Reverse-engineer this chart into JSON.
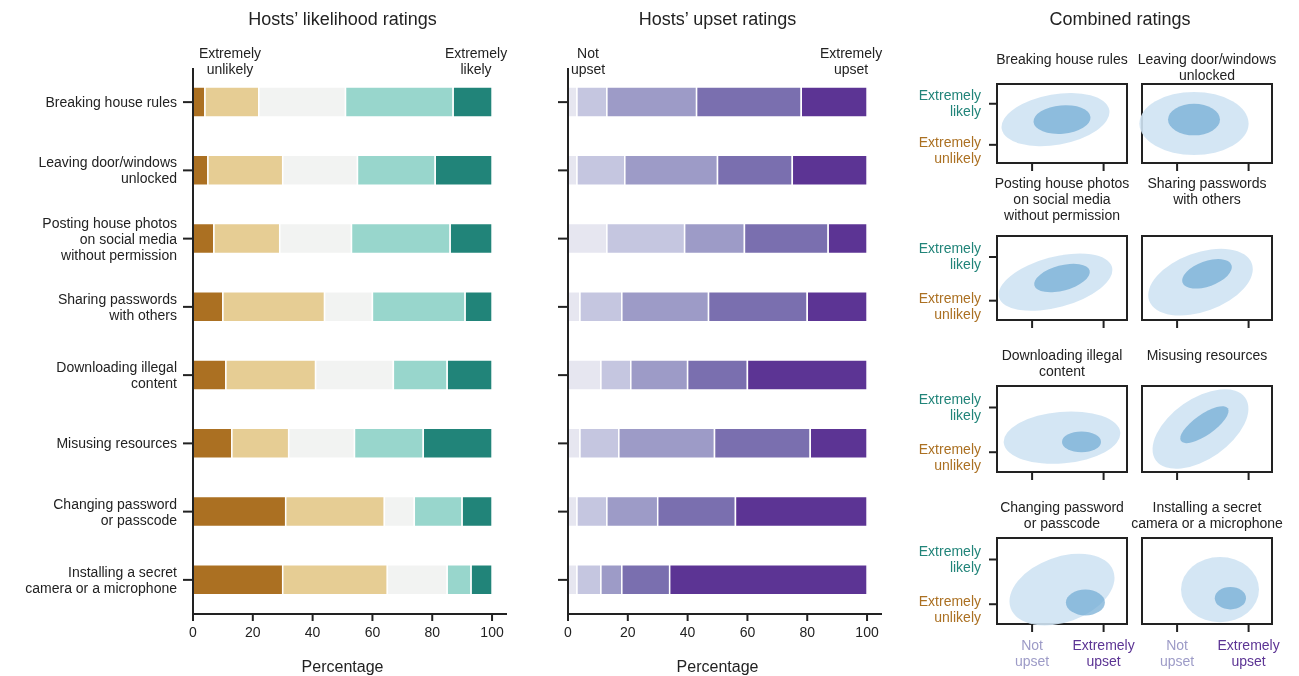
{
  "chart_data": [
    {
      "type": "bar",
      "orientation": "horizontal",
      "stacked": true,
      "title": "Hosts’ likelihood ratings",
      "xlabel": "Percentage",
      "categories": [
        "Breaking house rules",
        "Leaving door/windows\nunlocked",
        "Posting house photos\non social media\nwithout permission",
        "Sharing passwords\nwith others",
        "Downloading illegal\ncontent",
        "Misusing resources",
        "Changing password\nor passcode",
        "Installing a secret\ncamera or a microphone"
      ],
      "series": [
        {
          "color": "#ab7022",
          "values": [
            4,
            5,
            7,
            10,
            11,
            13,
            31,
            30
          ]
        },
        {
          "color": "#e6cd94",
          "values": [
            18,
            25,
            22,
            34,
            30,
            19,
            33,
            35
          ]
        },
        {
          "color": "#f2f3f2",
          "values": [
            29,
            25,
            24,
            16,
            26,
            22,
            10,
            20
          ]
        },
        {
          "color": "#98d6cc",
          "values": [
            36,
            26,
            33,
            31,
            18,
            23,
            16,
            8
          ]
        },
        {
          "color": "#218479",
          "values": [
            13,
            19,
            14,
            9,
            15,
            23,
            10,
            7
          ]
        }
      ],
      "xlim": [
        0,
        105
      ],
      "xticks": [
        0,
        20,
        40,
        60,
        80,
        100
      ],
      "annotations": [
        "Extremely\nunlikely",
        "Extremely\nlikely"
      ]
    },
    {
      "type": "bar",
      "orientation": "horizontal",
      "stacked": true,
      "title": "Hosts’ upset ratings",
      "xlabel": "Percentage",
      "categories": [
        null,
        null,
        null,
        null,
        null,
        null,
        null,
        null
      ],
      "series": [
        {
          "color": "#e6e6f0",
          "values": [
            3,
            3,
            13,
            4,
            11,
            4,
            3,
            3
          ]
        },
        {
          "color": "#c5c6e0",
          "values": [
            10,
            16,
            26,
            14,
            10,
            13,
            10,
            8
          ]
        },
        {
          "color": "#9d9bc7",
          "values": [
            30,
            31,
            20,
            29,
            19,
            32,
            17,
            7
          ]
        },
        {
          "color": "#7a6faf",
          "values": [
            35,
            25,
            28,
            33,
            20,
            32,
            26,
            16
          ]
        },
        {
          "color": "#5c3494",
          "values": [
            22,
            25,
            13,
            20,
            40,
            19,
            44,
            66
          ]
        }
      ],
      "xlim": [
        0,
        105
      ],
      "xticks": [
        0,
        20,
        40,
        60,
        80,
        100
      ],
      "tick_labels": "x",
      "annotations": [
        "Not\nupset",
        "Extremely\nupset"
      ]
    },
    {
      "type": "other",
      "title": "Combined ratings",
      "categories": [
        "Breaking house rules",
        "Leaving door/windows\nunlocked",
        "Posting house photos\non social media\nwithout permission",
        "Sharing passwords\nwith others",
        "Downloading illegal\ncontent",
        "Misusing resources",
        "Changing password\nor passcode",
        "Installing a secret\ncamera or a microphone"
      ],
      "annotations": [
        "Extremely\nlikely",
        "Extremely\nunlikely",
        "Not\nupset",
        "Extremely\nupset"
      ]
    }
  ]
}
